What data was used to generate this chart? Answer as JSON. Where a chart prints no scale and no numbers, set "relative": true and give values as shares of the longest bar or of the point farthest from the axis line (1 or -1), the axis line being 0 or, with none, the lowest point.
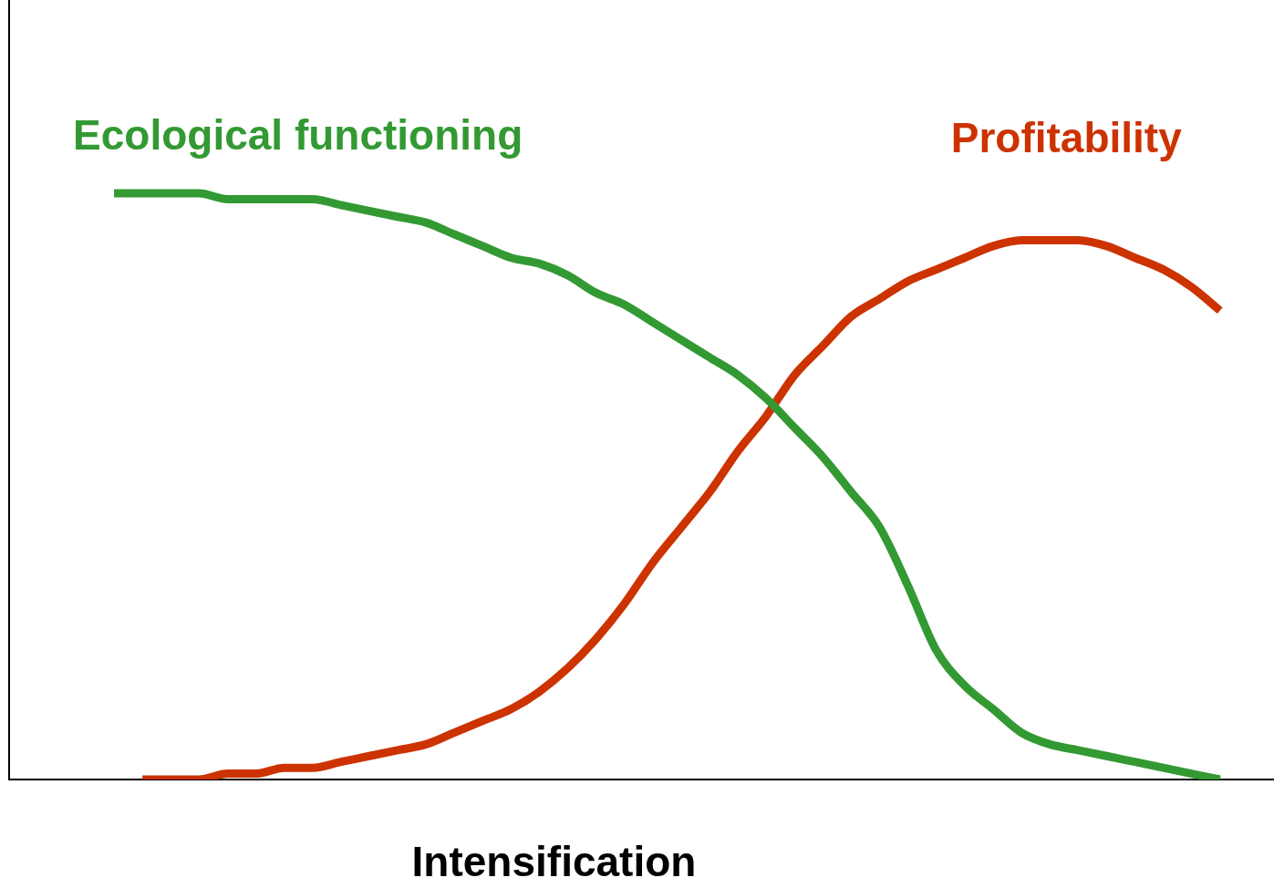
{
  "chart_data": {
    "type": "line",
    "relative": true,
    "xlabel": "Intensification",
    "legend": false,
    "grid": false,
    "marker": "none",
    "line_style": "solid",
    "categories": [
      null,
      null,
      null,
      null,
      null,
      null,
      null,
      null,
      null,
      null,
      null,
      null,
      null,
      null,
      null,
      null,
      null,
      null,
      null,
      null,
      null,
      null,
      null,
      null,
      null,
      null,
      null,
      null,
      null,
      null,
      null,
      null,
      null,
      null,
      null,
      null,
      null,
      null,
      null,
      null
    ],
    "series": [
      {
        "name": "Ecological functioning",
        "color": "#339933",
        "values": [
          1.0,
          1.0,
          1.0,
          1.0,
          0.99,
          0.99,
          0.99,
          0.99,
          0.98,
          0.97,
          0.96,
          0.95,
          0.93,
          0.91,
          0.89,
          0.88,
          0.86,
          0.83,
          0.81,
          0.78,
          0.75,
          0.72,
          0.69,
          0.65,
          0.6,
          0.55,
          0.49,
          0.43,
          0.33,
          0.22,
          0.16,
          0.12,
          0.08,
          0.06,
          0.05,
          0.04,
          0.03,
          0.02,
          0.01,
          0.0
        ]
      },
      {
        "name": "Profitability",
        "color": "#cc3300",
        "values": [
          null,
          0.0,
          0.0,
          0.0,
          0.01,
          0.01,
          0.02,
          0.02,
          0.03,
          0.04,
          0.05,
          0.06,
          0.08,
          0.1,
          0.12,
          0.15,
          0.19,
          0.24,
          0.3,
          0.37,
          0.43,
          0.49,
          0.56,
          0.62,
          0.69,
          0.74,
          0.79,
          0.82,
          0.85,
          0.87,
          0.89,
          0.91,
          0.92,
          0.92,
          0.92,
          0.91,
          0.89,
          0.87,
          0.84,
          0.8
        ]
      }
    ]
  }
}
